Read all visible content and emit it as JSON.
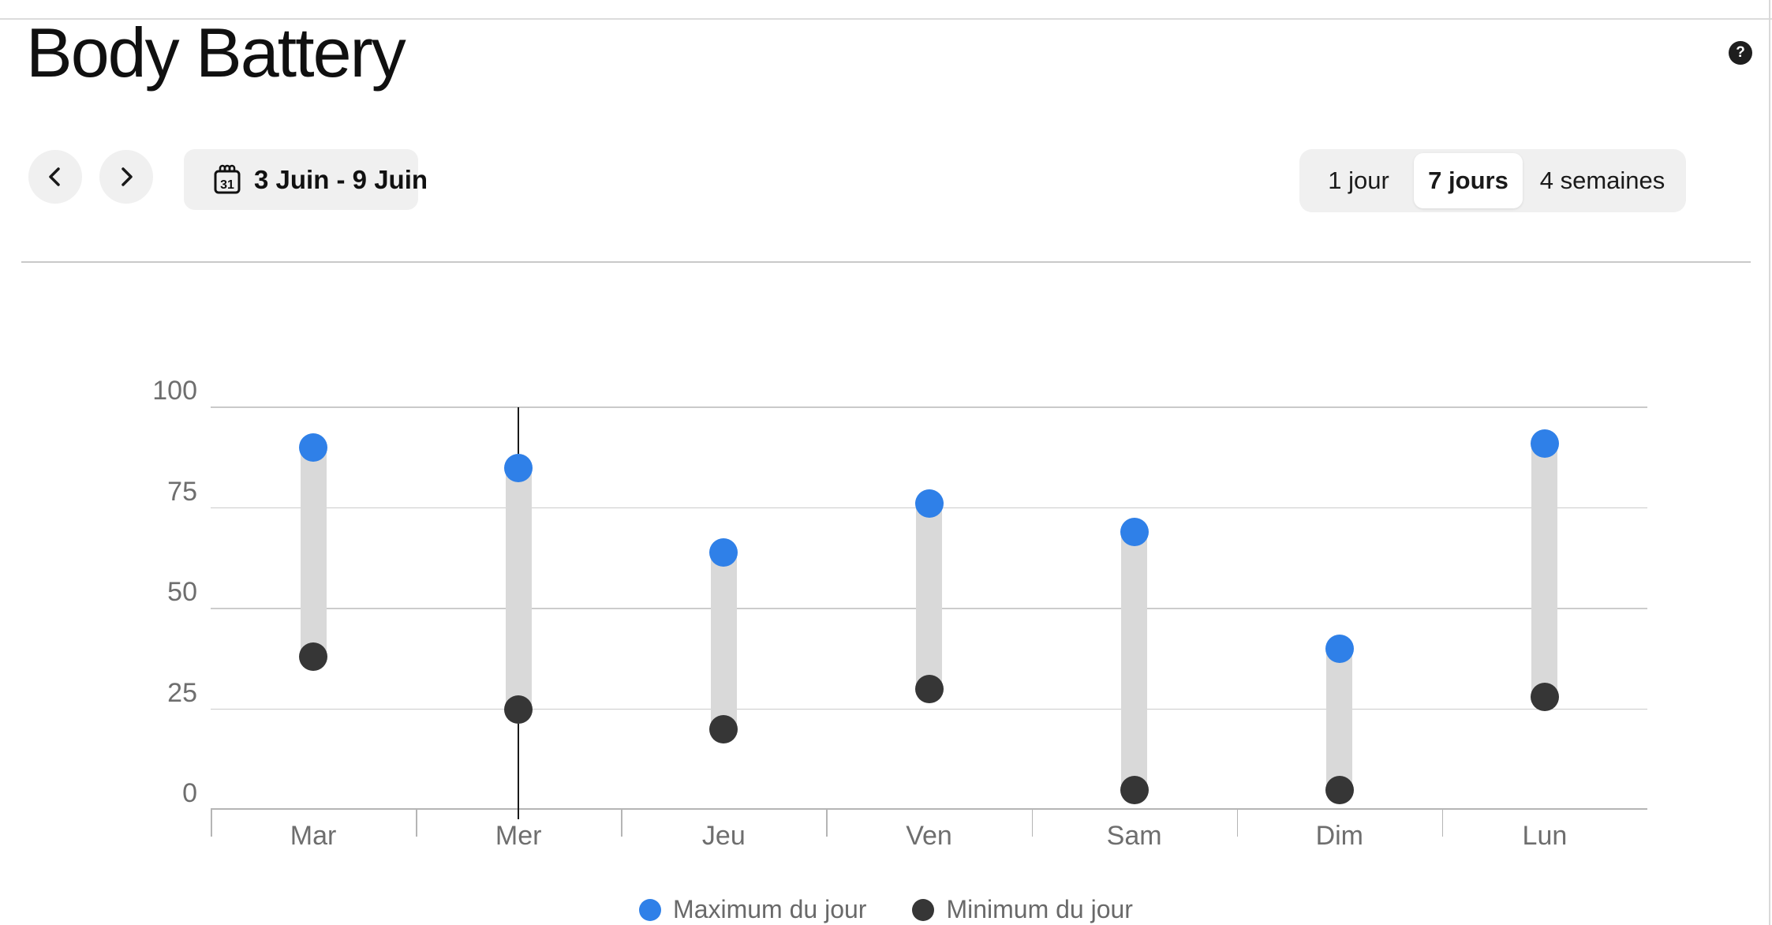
{
  "page": {
    "title": "Body Battery"
  },
  "header": {
    "help_label": "?"
  },
  "controls": {
    "prev_icon": "chevron-left",
    "next_icon": "chevron-right",
    "calendar_icon_day": "31",
    "date_range_label": "3 Juin - 9 Juin",
    "range_options": [
      {
        "label": "1 jour",
        "selected": false
      },
      {
        "label": "7 jours",
        "selected": true
      },
      {
        "label": "4 semaines",
        "selected": false
      }
    ]
  },
  "chart_data": {
    "type": "bar",
    "subtype": "floating-range-bars-with-endpoint-dots",
    "title": "Body Battery",
    "categories": [
      "Mar",
      "Mer",
      "Jeu",
      "Ven",
      "Sam",
      "Dim",
      "Lun"
    ],
    "series": [
      {
        "name": "Maximum du jour",
        "values": [
          90,
          85,
          64,
          76,
          69,
          40,
          91
        ],
        "color": "#2F80E8"
      },
      {
        "name": "Minimum du jour",
        "values": [
          38,
          25,
          20,
          30,
          5,
          5,
          28
        ],
        "color": "#363636"
      }
    ],
    "ylim": [
      0,
      100
    ],
    "yticks": [
      0,
      25,
      50,
      75,
      100
    ],
    "grid": true,
    "selected_category": "Mer",
    "range_bar_color": "#d9d9d9",
    "legend_position": "bottom"
  },
  "colors": {
    "accent_blue": "#2F80E8",
    "dot_dark": "#363636",
    "bar_gray": "#d9d9d9",
    "gridline": "#c9c9c9",
    "axis_text": "#6e6e6e",
    "control_bg": "#f0f0f0"
  }
}
